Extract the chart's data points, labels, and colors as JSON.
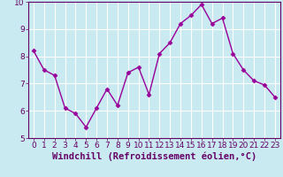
{
  "x": [
    0,
    1,
    2,
    3,
    4,
    5,
    6,
    7,
    8,
    9,
    10,
    11,
    12,
    13,
    14,
    15,
    16,
    17,
    18,
    19,
    20,
    21,
    22,
    23
  ],
  "y": [
    8.2,
    7.5,
    7.3,
    6.1,
    5.9,
    5.4,
    6.1,
    6.8,
    6.2,
    7.4,
    7.6,
    6.6,
    8.1,
    8.5,
    9.2,
    9.5,
    9.9,
    9.2,
    9.4,
    8.1,
    7.5,
    7.1,
    6.95,
    6.5
  ],
  "line_color": "#990099",
  "marker": "D",
  "marker_size": 2.5,
  "xlabel": "Windchill (Refroidissement éolien,°C)",
  "ylim": [
    5,
    10
  ],
  "xlim": [
    -0.5,
    23.5
  ],
  "yticks": [
    5,
    6,
    7,
    8,
    9,
    10
  ],
  "xticks": [
    0,
    1,
    2,
    3,
    4,
    5,
    6,
    7,
    8,
    9,
    10,
    11,
    12,
    13,
    14,
    15,
    16,
    17,
    18,
    19,
    20,
    21,
    22,
    23
  ],
  "bg_color": "#c8eaf0",
  "grid_color": "#ffffff",
  "axis_color": "#660066",
  "tick_label_color": "#660066",
  "xlabel_color": "#660066",
  "xlabel_fontsize": 7.5,
  "tick_fontsize": 6.5,
  "linewidth": 1.0
}
